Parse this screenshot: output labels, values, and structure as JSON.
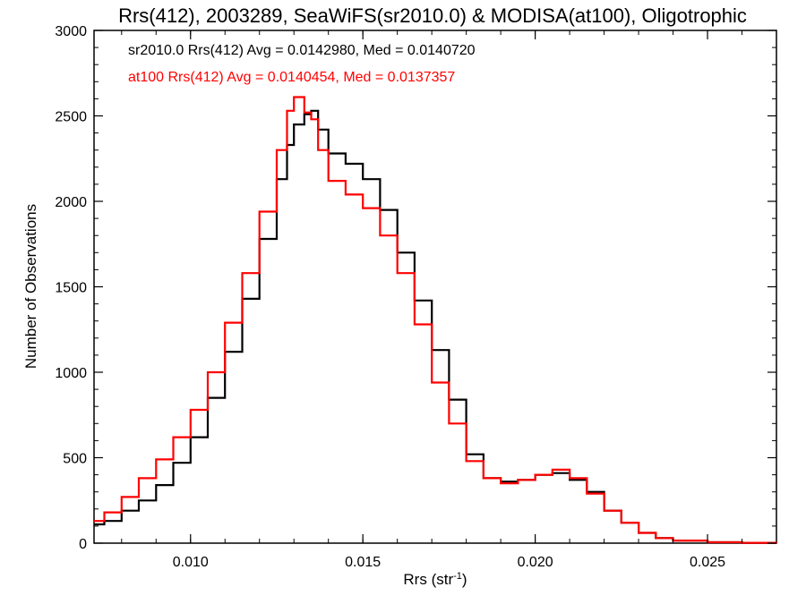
{
  "chart_data": {
    "type": "line",
    "title": "Rrs(412), 2003289, SeaWiFS(sr2010.0) & MODISA(at100), Oligotrophic",
    "xlabel": "Rrs (str",
    "xlabel_superscript": "-1",
    "xlabel_suffix": ")",
    "ylabel": "Number of Observations",
    "xlim": [
      0.0072,
      0.027
    ],
    "ylim": [
      0,
      3000
    ],
    "xticks": [
      0.01,
      0.015,
      0.02,
      0.025
    ],
    "xtick_labels": [
      "0.010",
      "0.015",
      "0.020",
      "0.025"
    ],
    "yticks": [
      0,
      500,
      1000,
      1500,
      2000,
      2500,
      3000
    ],
    "ytick_labels": [
      "0",
      "500",
      "1000",
      "1500",
      "2000",
      "2500",
      "3000"
    ],
    "grid": false,
    "annotations": [
      {
        "text": "sr2010.0 Rrs(412) Avg = 0.0142980, Med = 0.0140720",
        "color": "#000000"
      },
      {
        "text": "at100 Rrs(412) Avg = 0.0140454, Med = 0.0137357",
        "color": "#ff0000"
      }
    ],
    "series": [
      {
        "name": "sr2010.0",
        "color": "#000000",
        "step": true,
        "x": [
          0.0072,
          0.0075,
          0.008,
          0.0085,
          0.009,
          0.0095,
          0.01,
          0.0105,
          0.011,
          0.0115,
          0.012,
          0.0125,
          0.0128,
          0.013,
          0.0133,
          0.0135,
          0.0137,
          0.014,
          0.0145,
          0.015,
          0.0155,
          0.016,
          0.0165,
          0.017,
          0.0175,
          0.018,
          0.0185,
          0.019,
          0.0195,
          0.02,
          0.0205,
          0.021,
          0.0215,
          0.022,
          0.0225,
          0.023,
          0.0235,
          0.024,
          0.025,
          0.026,
          0.027
        ],
        "y": [
          110,
          130,
          190,
          250,
          340,
          470,
          620,
          850,
          1120,
          1430,
          1780,
          2130,
          2330,
          2450,
          2510,
          2530,
          2420,
          2280,
          2220,
          2130,
          1950,
          1700,
          1420,
          1130,
          840,
          520,
          380,
          360,
          370,
          400,
          410,
          370,
          300,
          190,
          120,
          60,
          30,
          15,
          5,
          2,
          0
        ]
      },
      {
        "name": "at100",
        "color": "#ff0000",
        "step": true,
        "x": [
          0.0072,
          0.0075,
          0.008,
          0.0085,
          0.009,
          0.0095,
          0.01,
          0.0105,
          0.011,
          0.0115,
          0.012,
          0.0125,
          0.0128,
          0.013,
          0.0133,
          0.0135,
          0.0137,
          0.014,
          0.0145,
          0.015,
          0.0155,
          0.016,
          0.0165,
          0.017,
          0.0175,
          0.018,
          0.0185,
          0.019,
          0.0195,
          0.02,
          0.0205,
          0.021,
          0.0215,
          0.022,
          0.0225,
          0.023,
          0.0235,
          0.024,
          0.025,
          0.026,
          0.027
        ],
        "y": [
          130,
          180,
          270,
          380,
          490,
          620,
          780,
          1000,
          1290,
          1580,
          1940,
          2300,
          2530,
          2610,
          2520,
          2480,
          2300,
          2120,
          2040,
          1960,
          1800,
          1580,
          1280,
          940,
          700,
          480,
          380,
          350,
          370,
          400,
          430,
          380,
          290,
          190,
          120,
          60,
          30,
          15,
          5,
          2,
          0
        ]
      }
    ]
  }
}
